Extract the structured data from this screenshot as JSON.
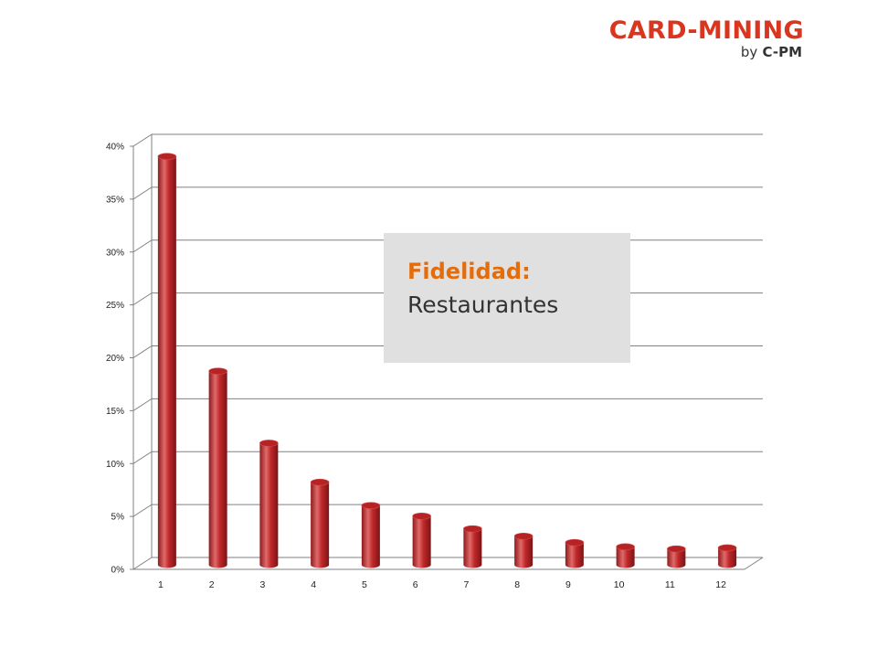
{
  "logo": {
    "main": "CARD-MINING",
    "by": "by",
    "brand": "C-PM"
  },
  "title_box": {
    "line1": "Fidelidad:",
    "line2": "Restaurantes"
  },
  "colors": {
    "bar": "#c0282a",
    "bar_dark": "#8e1a1c",
    "bar_light": "#e06a6a",
    "title_accent": "#e46c0a",
    "logo_red": "#d9351f",
    "title_box_bg": "#e0e0e0",
    "gridline": "#808080"
  },
  "chart_data": {
    "type": "bar",
    "style": "3d-cylinder",
    "categories": [
      "1",
      "2",
      "3",
      "4",
      "5",
      "6",
      "7",
      "8",
      "9",
      "10",
      "11",
      "12"
    ],
    "values": [
      0.386,
      0.183,
      0.115,
      0.078,
      0.056,
      0.046,
      0.034,
      0.027,
      0.021,
      0.017,
      0.015,
      0.016
    ],
    "ylim": [
      0,
      0.4
    ],
    "yticks": [
      "0%",
      "5%",
      "10%",
      "15%",
      "20%",
      "25%",
      "30%",
      "35%",
      "40%"
    ],
    "grid": true,
    "legend": "none"
  }
}
